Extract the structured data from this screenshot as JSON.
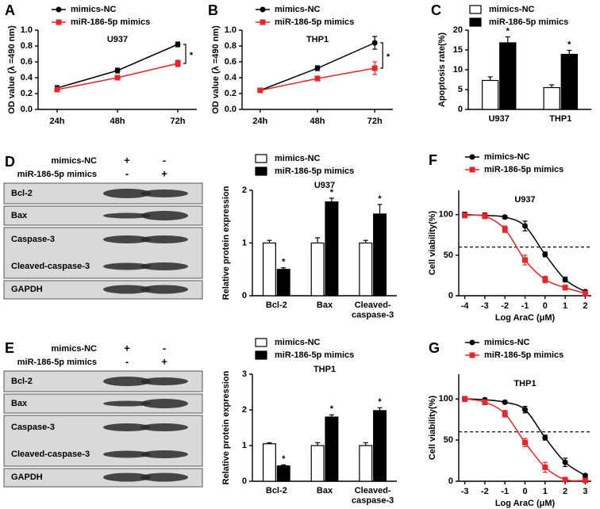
{
  "chart_data": [
    {
      "type": "line",
      "panel": "A",
      "title": "U937",
      "y_label": "OD value (λ =490 nm)",
      "categories": [
        "24h",
        "48h",
        "72h"
      ],
      "series": [
        {
          "name": "mimics-NC",
          "color": "#000000",
          "marker": "circle",
          "values": [
            0.27,
            0.49,
            0.82
          ],
          "errors": [
            0.03,
            0.03,
            0.03
          ]
        },
        {
          "name": "miR-186-5p mimics",
          "color": "#e8262a",
          "marker": "square",
          "values": [
            0.25,
            0.4,
            0.58
          ],
          "errors": [
            0.02,
            0.02,
            0.04
          ]
        }
      ],
      "ylim": [
        0,
        1.0
      ],
      "yticks": [
        {
          "value": 0,
          "label": "0.0"
        },
        0.2,
        0.4,
        0.6,
        0.8,
        {
          "value": 1.0,
          "label": "1.0"
        }
      ],
      "annotation": "*"
    },
    {
      "type": "line",
      "panel": "B",
      "title": "THP1",
      "y_label": "OD value (λ =490 nm)",
      "categories": [
        "24h",
        "48h",
        "72h"
      ],
      "series": [
        {
          "name": "mimics-NC",
          "color": "#000000",
          "marker": "circle",
          "values": [
            0.24,
            0.52,
            0.84
          ],
          "errors": [
            0.02,
            0.03,
            0.08
          ]
        },
        {
          "name": "miR-186-5p mimics",
          "color": "#e8262a",
          "marker": "square",
          "values": [
            0.24,
            0.39,
            0.52
          ],
          "errors": [
            0.02,
            0.03,
            0.08
          ]
        }
      ],
      "ylim": [
        0,
        1.0
      ],
      "yticks": [
        {
          "value": 0,
          "label": "0.0"
        },
        0.2,
        0.4,
        0.6,
        0.8,
        {
          "value": 1.0,
          "label": "1.0"
        }
      ],
      "annotation": "*"
    },
    {
      "type": "bar",
      "panel": "C",
      "y_label": "Apoptosis rate(%)",
      "categories": [
        "U937",
        "THP1"
      ],
      "series": [
        {
          "name": "mimics-NC",
          "color": "#ffffff",
          "values": [
            7.3,
            5.5
          ],
          "errors": [
            0.9,
            0.7
          ]
        },
        {
          "name": "miR-186-5p mimics",
          "color": "#000000",
          "values": [
            16.8,
            13.9
          ],
          "errors": [
            1.5,
            1.0
          ]
        }
      ],
      "ylim": [
        0,
        20
      ],
      "yticks": [
        0,
        5,
        10,
        15,
        20
      ],
      "annotation": "*"
    },
    {
      "type": "bar",
      "title": "U937",
      "y_label": "Relative protein expression",
      "categories": [
        "Bcl-2",
        "Bax",
        "Cleaved-\ncaspase-3"
      ],
      "series": [
        {
          "name": "mimics-NC",
          "color": "#ffffff",
          "values": [
            1.0,
            1.0,
            1.0
          ],
          "errors": [
            0.05,
            0.1,
            0.05
          ]
        },
        {
          "name": "miR-186-5p mimics",
          "color": "#000000",
          "values": [
            0.5,
            1.78,
            1.55
          ],
          "errors": [
            0.03,
            0.07,
            0.18
          ]
        }
      ],
      "ylim": [
        0,
        2
      ],
      "yticks": [
        0,
        1,
        2
      ],
      "annotation": "*"
    },
    {
      "type": "line",
      "panel": "F",
      "title": "U937",
      "y_label": "Cell viability(%)",
      "x_label": "Log AraC (μM)",
      "x": [
        -4,
        -3,
        -2,
        -1,
        0,
        1,
        2
      ],
      "xlim": [
        -4.3,
        2.3
      ],
      "xticks": [
        -4,
        -3,
        -2,
        -1,
        0,
        1,
        2
      ],
      "smooth": true,
      "series": [
        {
          "name": "mimics-NC",
          "color": "#000000",
          "marker": "circle",
          "values": [
            100,
            99,
            97,
            86,
            51,
            20,
            5
          ],
          "errors": [
            3,
            3,
            2,
            6,
            3,
            3,
            2
          ]
        },
        {
          "name": "miR-186-5p mimics",
          "color": "#e8262a",
          "marker": "square",
          "values": [
            99,
            98,
            82,
            44,
            20,
            10,
            3
          ],
          "errors": [
            3,
            3,
            4,
            6,
            4,
            3,
            1
          ]
        }
      ],
      "ylim": [
        0,
        130
      ],
      "yticks": [
        0,
        50,
        100
      ],
      "reference_line": 60
    },
    {
      "type": "bar",
      "title": "THP1",
      "y_label": "Relative protein expression",
      "categories": [
        "Bcl-2",
        "Bax",
        "Cleaved-\ncaspase-3"
      ],
      "series": [
        {
          "name": "mimics-NC",
          "color": "#ffffff",
          "values": [
            1.05,
            1.0,
            1.0
          ],
          "errors": [
            0.03,
            0.08,
            0.08
          ]
        },
        {
          "name": "miR-186-5p mimics",
          "color": "#000000",
          "values": [
            0.43,
            1.8,
            1.98
          ],
          "errors": [
            0.03,
            0.06,
            0.08
          ]
        }
      ],
      "ylim": [
        0,
        3
      ],
      "yticks": [
        0,
        1,
        2,
        3
      ],
      "annotation": "*"
    },
    {
      "type": "line",
      "panel": "G",
      "title": "THP1",
      "y_label": "Cell viability(%)",
      "x_label": "Log AraC (μM)",
      "x": [
        -3,
        -2,
        -1,
        0,
        1,
        2,
        3
      ],
      "xlim": [
        -3.3,
        3.3
      ],
      "xticks": [
        -3,
        -2,
        -1,
        0,
        1,
        2,
        3
      ],
      "smooth": true,
      "series": [
        {
          "name": "mimics-NC",
          "color": "#000000",
          "marker": "circle",
          "values": [
            100,
            99,
            96,
            87,
            53,
            23,
            7
          ],
          "errors": [
            3,
            2,
            2,
            4,
            3,
            5,
            2
          ]
        },
        {
          "name": "miR-186-5p mimics",
          "color": "#e8262a",
          "marker": "square",
          "values": [
            100,
            96,
            82,
            47,
            17,
            2,
            1
          ],
          "errors": [
            3,
            3,
            4,
            5,
            6,
            1,
            1
          ]
        }
      ],
      "ylim": [
        0,
        130
      ],
      "yticks": [
        0,
        50,
        100
      ],
      "reference_line": 60
    }
  ],
  "blots": [
    {
      "panel": "D",
      "conditions": [
        {
          "label": "mimics-NC",
          "signs": [
            "+",
            "-"
          ]
        },
        {
          "label": "miR-186-5p mimics",
          "signs": [
            "-",
            "+"
          ]
        }
      ],
      "bands": [
        "Bcl-2",
        "Bax",
        "Caspase-3",
        "Cleaved-caspase-3",
        "GAPDH"
      ]
    },
    {
      "panel": "E",
      "conditions": [
        {
          "label": "mimics-NC",
          "signs": [
            "+",
            "-"
          ]
        },
        {
          "label": "miR-186-5p mimics",
          "signs": [
            "-",
            "+"
          ]
        }
      ],
      "bands": [
        "Bcl-2",
        "Bax",
        "Caspase-3",
        "Cleaved-caspase-3",
        "GAPDH"
      ]
    }
  ]
}
